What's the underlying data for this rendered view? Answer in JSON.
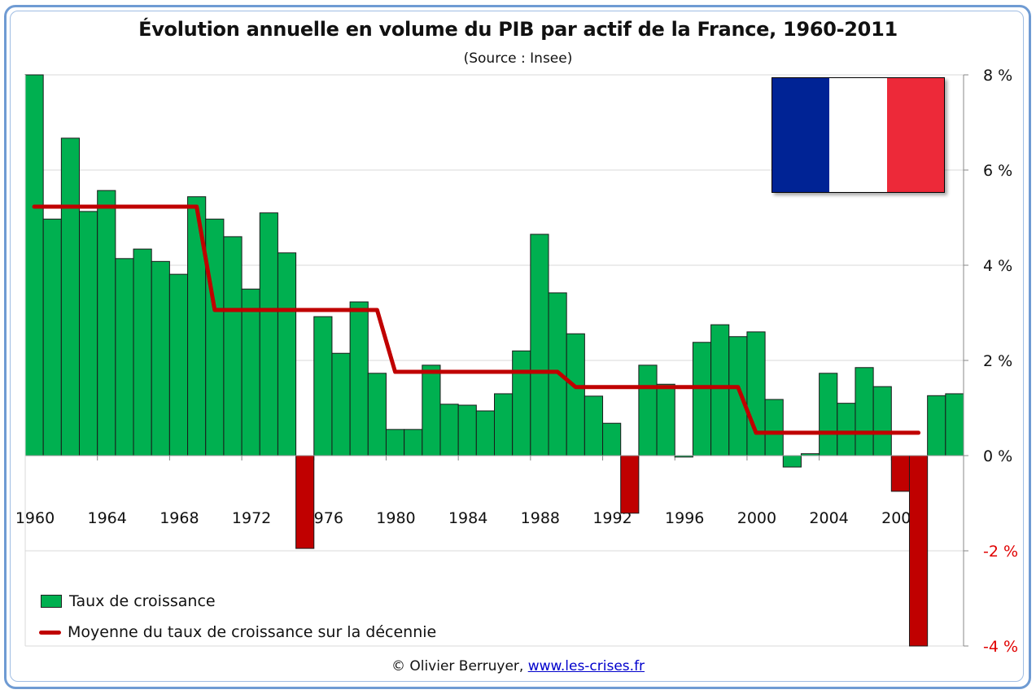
{
  "header": {
    "title": "Évolution annuelle en volume du PIB par actif de la France, 1960-2011",
    "subtitle": "(Source : Insee)"
  },
  "flag": {
    "icon": "france-flag-icon",
    "colors": [
      "#002395",
      "#ffffff",
      "#ed2939"
    ]
  },
  "footer": {
    "copyright": "© Olivier Berruyer,",
    "link_text": "www.les-crises.fr"
  },
  "colors": {
    "positive_bar": "#00b050",
    "negative_bar": "#c00000",
    "average_line": "#c00000",
    "negative_tick_label": "#e00000",
    "frame": "#6f9bd3"
  },
  "chart_data": {
    "type": "bar",
    "title": "Évolution annuelle en volume du PIB par actif de la France, 1960-2011",
    "subtitle": "(Source : Insee)",
    "xlabel": "",
    "ylabel": "",
    "ylim": [
      -4,
      8
    ],
    "y_ticks": [
      8,
      6,
      4,
      2,
      0,
      -2,
      -4
    ],
    "y_tick_labels": [
      "8 %",
      "6 %",
      "4 %",
      "2 %",
      "0 %",
      "-2 %",
      "-4 %"
    ],
    "y_axis_position": "right",
    "grid": true,
    "legend_position": "bottom-left",
    "x_tick_labels": [
      "1960",
      "1964",
      "1968",
      "1972",
      "1976",
      "1980",
      "1984",
      "1988",
      "1992",
      "1996",
      "2000",
      "2004",
      "2008"
    ],
    "categories": [
      1960,
      1961,
      1962,
      1963,
      1964,
      1965,
      1966,
      1967,
      1968,
      1969,
      1970,
      1971,
      1972,
      1973,
      1974,
      1975,
      1976,
      1977,
      1978,
      1979,
      1980,
      1981,
      1982,
      1983,
      1984,
      1985,
      1986,
      1987,
      1988,
      1989,
      1990,
      1991,
      1992,
      1993,
      1994,
      1995,
      1996,
      1997,
      1998,
      1999,
      2000,
      2001,
      2002,
      2003,
      2004,
      2005,
      2006,
      2007,
      2008,
      2009,
      2010,
      2011
    ],
    "series": [
      {
        "name": "Taux de croissance",
        "type": "bar",
        "values": [
          8.0,
          4.97,
          6.67,
          5.13,
          5.57,
          4.14,
          4.34,
          4.08,
          3.81,
          5.44,
          4.97,
          4.6,
          3.5,
          5.1,
          4.26,
          -1.95,
          2.92,
          2.15,
          3.23,
          1.73,
          0.55,
          0.55,
          1.9,
          1.08,
          1.06,
          0.94,
          1.3,
          2.2,
          4.65,
          3.42,
          2.56,
          1.25,
          0.68,
          -1.21,
          1.9,
          1.5,
          -0.03,
          2.38,
          2.75,
          2.5,
          2.6,
          1.18,
          -0.24,
          0.04,
          1.73,
          1.1,
          1.85,
          1.45,
          -0.75,
          -4.0,
          1.26,
          1.3
        ],
        "highlighted_negative_years": [
          1975,
          1993,
          2008,
          2009
        ]
      },
      {
        "name": "Moyenne du taux de croissance sur la décennie",
        "type": "line",
        "x": [
          1960,
          1961,
          1962,
          1963,
          1964,
          1965,
          1966,
          1967,
          1968,
          1969,
          1970,
          1971,
          1972,
          1973,
          1974,
          1975,
          1976,
          1977,
          1978,
          1979,
          1980,
          1981,
          1982,
          1983,
          1984,
          1985,
          1986,
          1987,
          1988,
          1989,
          1990,
          1991,
          1992,
          1993,
          1994,
          1995,
          1996,
          1997,
          1998,
          1999,
          2000,
          2001,
          2002,
          2003,
          2004,
          2005,
          2006,
          2007,
          2008,
          2009
        ],
        "values": [
          5.23,
          5.23,
          5.23,
          5.23,
          5.23,
          5.23,
          5.23,
          5.23,
          5.23,
          5.23,
          3.06,
          3.06,
          3.06,
          3.06,
          3.06,
          3.06,
          3.06,
          3.06,
          3.06,
          3.06,
          1.76,
          1.76,
          1.76,
          1.76,
          1.76,
          1.76,
          1.76,
          1.76,
          1.76,
          1.76,
          1.44,
          1.44,
          1.44,
          1.44,
          1.44,
          1.44,
          1.44,
          1.44,
          1.44,
          1.44,
          0.48,
          0.48,
          0.48,
          0.48,
          0.48,
          0.48,
          0.48,
          0.48,
          0.48,
          0.48
        ]
      }
    ],
    "legend": [
      "Taux de croissance",
      "Moyenne du taux de croissance sur la décennie"
    ]
  }
}
